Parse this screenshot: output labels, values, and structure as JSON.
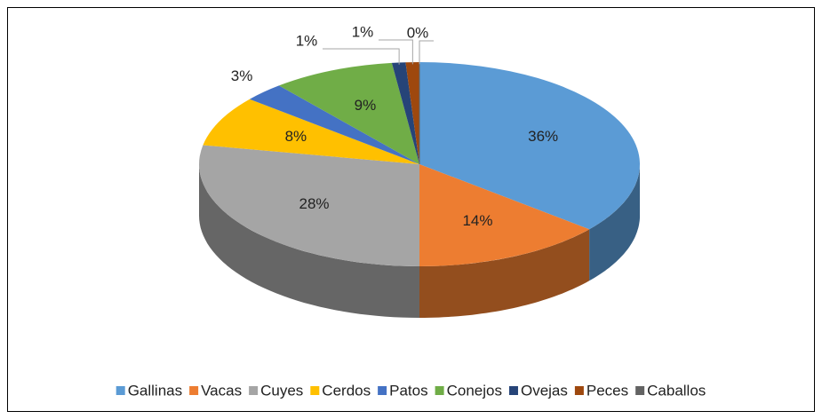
{
  "chart_data": {
    "type": "pie3d",
    "categories": [
      "Gallinas",
      "Vacas",
      "Cuyes",
      "Cerdos",
      "Patos",
      "Conejos",
      "Ovejas",
      "Peces",
      "Caballos"
    ],
    "values": [
      36,
      14,
      28,
      8,
      3,
      9,
      1,
      1,
      0
    ],
    "value_labels": [
      "36%",
      "14%",
      "28%",
      "8%",
      "3%",
      "9%",
      "1%",
      "1%",
      "0%"
    ],
    "colors": [
      "#5b9bd5",
      "#ed7d31",
      "#a5a5a5",
      "#ffc000",
      "#4472c4",
      "#70ad47",
      "#264478",
      "#9e480e",
      "#636363"
    ],
    "legend": "bottom"
  }
}
